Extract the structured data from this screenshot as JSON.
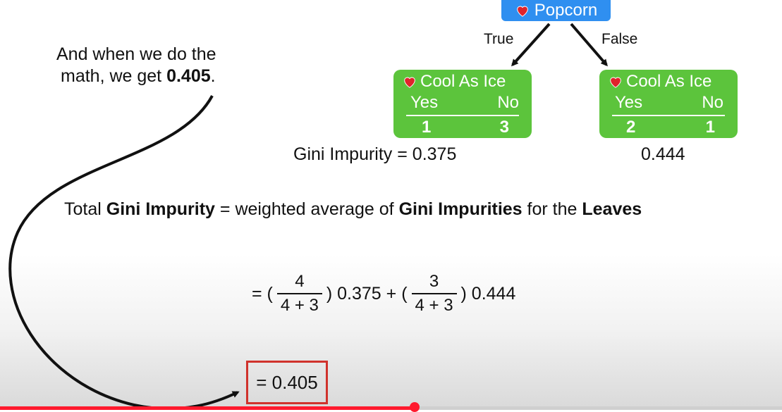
{
  "tree": {
    "root": {
      "label": "Popcorn"
    },
    "branches": {
      "true_label": "True",
      "false_label": "False"
    },
    "left_leaf": {
      "title": "Cool As Ice",
      "yes_label": "Yes",
      "no_label": "No",
      "yes_count": "1",
      "no_count": "3"
    },
    "right_leaf": {
      "title": "Cool As Ice",
      "yes_label": "Yes",
      "no_label": "No",
      "yes_count": "2",
      "no_count": "1"
    }
  },
  "note": {
    "line1": "And when we do the",
    "line2_prefix": "math, we get ",
    "line2_value": "0.405",
    "line2_suffix": "."
  },
  "gini": {
    "left_text": "Gini Impurity = 0.375",
    "right_text": "0.444"
  },
  "total_text": {
    "p1": "Total ",
    "b1": "Gini Impurity",
    "p2": " = weighted average of ",
    "b2": "Gini Impurities",
    "p3": " for the ",
    "b3": "Leaves"
  },
  "formula": {
    "prefix": "= (",
    "frac1": {
      "num": "4",
      "den": "4 + 3"
    },
    "mid": ") 0.375 + (",
    "frac2": {
      "num": "3",
      "den": "4 + 3"
    },
    "suffix": ") 0.444"
  },
  "result": {
    "text": "= 0.405"
  },
  "video": {
    "progress": 0.53
  },
  "colors": {
    "root": "#2f8ff0",
    "leaf": "#5cc43c",
    "result_border": "#d0322c",
    "progress": "#ff1a2e",
    "heart": "#e0242b"
  }
}
